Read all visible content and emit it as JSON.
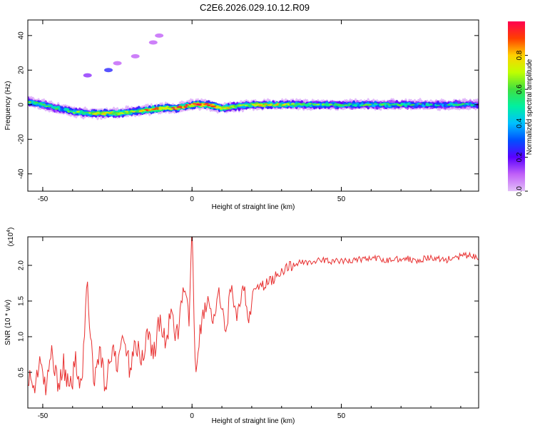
{
  "title": "C2E6.2026.029.10.12.R09",
  "chart_data": [
    {
      "type": "heatmap",
      "xlabel": "Height of straight line (km)",
      "ylabel": "Frequency (Hz)",
      "xlim": [
        -55,
        96
      ],
      "ylim": [
        -50,
        49
      ],
      "xticks": [
        -50,
        0,
        50
      ],
      "yticks": [
        40,
        20,
        0,
        -20,
        -40
      ],
      "ridge": [
        {
          "x": -55,
          "f": 2,
          "amp": 0.5
        },
        {
          "x": -50,
          "f": 0,
          "amp": 0.55
        },
        {
          "x": -45,
          "f": -2,
          "amp": 0.5
        },
        {
          "x": -40,
          "f": -4,
          "amp": 0.55
        },
        {
          "x": -35,
          "f": -5,
          "amp": 0.6
        },
        {
          "x": -30,
          "f": -5,
          "amp": 0.7
        },
        {
          "x": -25,
          "f": -5,
          "amp": 0.7
        },
        {
          "x": -20,
          "f": -4,
          "amp": 0.65
        },
        {
          "x": -15,
          "f": -3,
          "amp": 0.8
        },
        {
          "x": -10,
          "f": -2,
          "amp": 0.85
        },
        {
          "x": -5,
          "f": -2,
          "amp": 0.85
        },
        {
          "x": 0,
          "f": 0,
          "amp": 0.9
        },
        {
          "x": 5,
          "f": 0,
          "amp": 0.95
        },
        {
          "x": 10,
          "f": -2,
          "amp": 0.8
        },
        {
          "x": 15,
          "f": -1,
          "amp": 0.6
        },
        {
          "x": 20,
          "f": 0,
          "amp": 0.6
        },
        {
          "x": 25,
          "f": 0,
          "amp": 0.75
        },
        {
          "x": 30,
          "f": 0,
          "amp": 0.65
        },
        {
          "x": 40,
          "f": 0,
          "amp": 0.55
        },
        {
          "x": 50,
          "f": 0,
          "amp": 0.5
        },
        {
          "x": 60,
          "f": 0,
          "amp": 0.5
        },
        {
          "x": 70,
          "f": 0,
          "amp": 0.5
        },
        {
          "x": 80,
          "f": 0,
          "amp": 0.45
        },
        {
          "x": 90,
          "f": 0,
          "amp": 0.45
        },
        {
          "x": 96,
          "f": 0,
          "amp": 0.4
        }
      ],
      "secondary": [
        {
          "x": -35,
          "f": 17,
          "amp": 0.15
        },
        {
          "x": -28,
          "f": 20,
          "amp": 0.25
        },
        {
          "x": -25,
          "f": 24,
          "amp": 0.1
        },
        {
          "x": -19,
          "f": 28,
          "amp": 0.1
        },
        {
          "x": -13,
          "f": 36,
          "amp": 0.1
        },
        {
          "x": -11,
          "f": 40,
          "amp": 0.1
        }
      ],
      "colorbar": {
        "label": "Normalized spectral amplitude",
        "ticks": [
          0.0,
          0.2,
          0.4,
          0.6,
          0.8
        ],
        "range": [
          0,
          1
        ],
        "colors": [
          "#e2bff8",
          "#c060f8",
          "#5a00ff",
          "#0050ff",
          "#00c0ff",
          "#00f0a0",
          "#40e040",
          "#c0ff00",
          "#ffd000",
          "#ff4000",
          "#ff0050"
        ]
      }
    },
    {
      "type": "line",
      "xlabel": "Height of straight line (km)",
      "ylabel": "SNR (10 * v/v)",
      "multiplier": "(x10",
      "multiplier_exp": "4",
      "xlim": [
        -55,
        96
      ],
      "ylim": [
        0,
        2.4
      ],
      "xticks": [
        -50,
        0,
        50
      ],
      "yticks": [
        0.5,
        1.0,
        1.5,
        2.0
      ],
      "color": "#e83030",
      "series": [
        {
          "x": -55,
          "y": 0.5
        },
        {
          "x": -53,
          "y": 0.25
        },
        {
          "x": -51,
          "y": 0.7
        },
        {
          "x": -49,
          "y": 0.2
        },
        {
          "x": -47,
          "y": 0.8
        },
        {
          "x": -45,
          "y": 0.35
        },
        {
          "x": -43,
          "y": 0.6
        },
        {
          "x": -41,
          "y": 0.2
        },
        {
          "x": -39,
          "y": 0.65
        },
        {
          "x": -37,
          "y": 0.35
        },
        {
          "x": -35,
          "y": 1.77
        },
        {
          "x": -33,
          "y": 0.3
        },
        {
          "x": -31,
          "y": 0.85
        },
        {
          "x": -29,
          "y": 0.3
        },
        {
          "x": -27,
          "y": 0.8
        },
        {
          "x": -25,
          "y": 0.55
        },
        {
          "x": -23,
          "y": 1.1
        },
        {
          "x": -21,
          "y": 0.55
        },
        {
          "x": -19,
          "y": 1.0
        },
        {
          "x": -17,
          "y": 0.6
        },
        {
          "x": -15,
          "y": 1.1
        },
        {
          "x": -13,
          "y": 0.75
        },
        {
          "x": -11,
          "y": 1.2
        },
        {
          "x": -9,
          "y": 0.95
        },
        {
          "x": -7,
          "y": 1.25
        },
        {
          "x": -5,
          "y": 1.05
        },
        {
          "x": -3,
          "y": 1.55
        },
        {
          "x": -1,
          "y": 1.3
        },
        {
          "x": 0,
          "y": 2.45
        },
        {
          "x": 1,
          "y": 0.55
        },
        {
          "x": 3,
          "y": 1.1
        },
        {
          "x": 5,
          "y": 1.55
        },
        {
          "x": 7,
          "y": 1.2
        },
        {
          "x": 9,
          "y": 1.55
        },
        {
          "x": 11,
          "y": 1.05
        },
        {
          "x": 13,
          "y": 1.65
        },
        {
          "x": 15,
          "y": 1.2
        },
        {
          "x": 17,
          "y": 1.8
        },
        {
          "x": 19,
          "y": 1.35
        },
        {
          "x": 21,
          "y": 1.65
        },
        {
          "x": 23,
          "y": 1.7
        },
        {
          "x": 25,
          "y": 1.75
        },
        {
          "x": 27,
          "y": 1.8
        },
        {
          "x": 29,
          "y": 1.9
        },
        {
          "x": 31,
          "y": 1.95
        },
        {
          "x": 33,
          "y": 1.98
        },
        {
          "x": 35,
          "y": 2.03
        },
        {
          "x": 37,
          "y": 2.05
        },
        {
          "x": 40,
          "y": 2.05
        },
        {
          "x": 45,
          "y": 2.07
        },
        {
          "x": 50,
          "y": 2.05
        },
        {
          "x": 55,
          "y": 2.08
        },
        {
          "x": 60,
          "y": 2.1
        },
        {
          "x": 65,
          "y": 2.07
        },
        {
          "x": 70,
          "y": 2.1
        },
        {
          "x": 75,
          "y": 2.08
        },
        {
          "x": 80,
          "y": 2.1
        },
        {
          "x": 85,
          "y": 2.08
        },
        {
          "x": 90,
          "y": 2.12
        },
        {
          "x": 93,
          "y": 2.15
        },
        {
          "x": 96,
          "y": 2.08
        }
      ]
    }
  ]
}
